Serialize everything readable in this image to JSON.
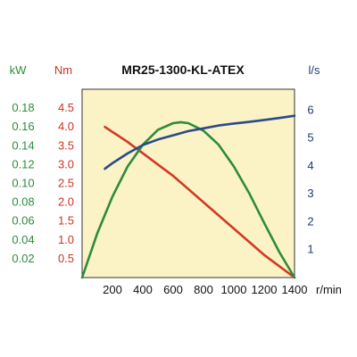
{
  "chart_data": {
    "type": "line",
    "title": "MR25-1300-KL-ATEX",
    "x_unit": "r/min",
    "xlim": [
      0,
      1400
    ],
    "x_ticks": [
      200,
      400,
      600,
      800,
      1000,
      1200,
      1400
    ],
    "grid": false,
    "plot_background": "#fbf3c6",
    "axes": {
      "kw": {
        "unit": "kW",
        "color": "#2e8b3e",
        "ylim": [
          0,
          0.2
        ],
        "ticks": [
          "0.02",
          "0.04",
          "0.06",
          "0.08",
          "0.10",
          "0.12",
          "0.14",
          "0.16",
          "0.18"
        ]
      },
      "nm": {
        "unit": "Nm",
        "color": "#cc3322",
        "ylim": [
          0,
          5
        ],
        "ticks": [
          "0.5",
          "1.0",
          "1.5",
          "2.0",
          "2.5",
          "3.0",
          "3.5",
          "4.0",
          "4.5"
        ]
      },
      "ls": {
        "unit": "l/s",
        "color": "#1f3a6e",
        "ylim": [
          0,
          6.75
        ],
        "ticks": [
          "1",
          "2",
          "3",
          "4",
          "5",
          "6"
        ]
      }
    },
    "series": [
      {
        "axis": "nm",
        "color": "#d03a22",
        "x": [
          150,
          300,
          400,
          500,
          600,
          700,
          800,
          900,
          1000,
          1100,
          1200,
          1300,
          1400
        ],
        "y": [
          4.0,
          3.6,
          3.3,
          3.0,
          2.7,
          2.35,
          2.0,
          1.65,
          1.3,
          0.95,
          0.6,
          0.3,
          0.0
        ]
      },
      {
        "axis": "kw",
        "color": "#2e8b3e",
        "x": [
          0,
          100,
          200,
          300,
          400,
          500,
          600,
          650,
          700,
          800,
          900,
          1000,
          1100,
          1200,
          1300,
          1400
        ],
        "y": [
          0.0,
          0.047,
          0.086,
          0.118,
          0.141,
          0.157,
          0.164,
          0.165,
          0.164,
          0.156,
          0.141,
          0.118,
          0.09,
          0.058,
          0.027,
          0.0
        ]
      },
      {
        "axis": "ls",
        "color": "#2a4a8a",
        "x": [
          150,
          200,
          300,
          400,
          500,
          600,
          700,
          800,
          900,
          1000,
          1100,
          1200,
          1300,
          1400
        ],
        "y": [
          3.9,
          4.1,
          4.45,
          4.75,
          4.95,
          5.1,
          5.25,
          5.35,
          5.45,
          5.52,
          5.58,
          5.65,
          5.72,
          5.8
        ]
      }
    ]
  }
}
